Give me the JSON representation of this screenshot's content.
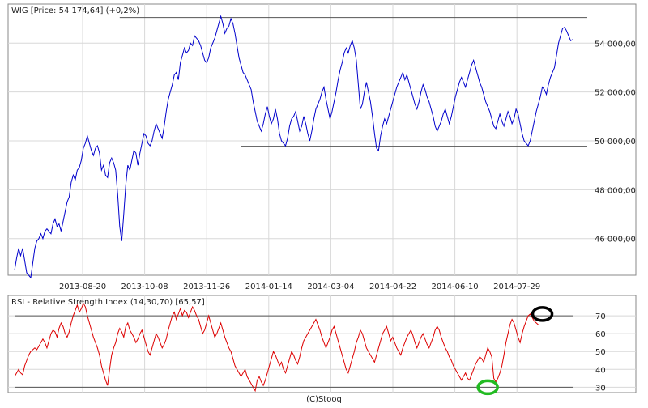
{
  "credit": "(C)Stooq",
  "chart_data": [
    {
      "type": "line",
      "panel": "price",
      "title": "WIG [Price: 54 174,64] (+0,2%)",
      "x_tick_labels": [
        "2013-08-20",
        "2013-10-08",
        "2013-11-26",
        "2014-01-14",
        "2014-03-04",
        "2014-04-22",
        "2014-06-10",
        "2014-07-29"
      ],
      "y_tick_labels": [
        "46 000,00",
        "48 000,00",
        "50 000,00",
        "52 000,00",
        "54 000,00"
      ],
      "y_ticks": [
        46000,
        48000,
        50000,
        52000,
        54000
      ],
      "ylim": [
        44500,
        55500
      ],
      "grid": true,
      "colors": {
        "series": "#0000cc",
        "grid": "#d8d8d8",
        "ref_line": "#555555",
        "frame": "#888888"
      },
      "reference_lines": [
        {
          "value": 55050,
          "from_index": 52,
          "to_index": 264
        },
        {
          "value": 49780,
          "from_index": 112,
          "to_index": 264
        }
      ],
      "series": [
        {
          "values": [
            44700,
            45200,
            45600,
            45300,
            45600,
            45100,
            44600,
            44500,
            44400,
            45000,
            45600,
            45900,
            46000,
            46200,
            46000,
            46300,
            46400,
            46300,
            46200,
            46600,
            46800,
            46500,
            46600,
            46300,
            46700,
            47100,
            47500,
            47700,
            48300,
            48600,
            48400,
            48800,
            48900,
            49200,
            49700,
            49900,
            50200,
            49900,
            49600,
            49400,
            49700,
            49800,
            49500,
            48800,
            49000,
            48600,
            48500,
            49100,
            49300,
            49100,
            48800,
            47800,
            46500,
            45900,
            47000,
            48200,
            49000,
            48800,
            49200,
            49600,
            49500,
            49000,
            49500,
            49900,
            50300,
            50200,
            49900,
            49800,
            50000,
            50400,
            50700,
            50500,
            50300,
            50100,
            50600,
            51200,
            51700,
            52000,
            52300,
            52700,
            52800,
            52500,
            53200,
            53500,
            53800,
            53600,
            53700,
            54000,
            53900,
            54300,
            54200,
            54100,
            53900,
            53600,
            53300,
            53200,
            53400,
            53800,
            54000,
            54200,
            54500,
            54800,
            55100,
            54800,
            54400,
            54600,
            54700,
            55000,
            54800,
            54400,
            53900,
            53400,
            53100,
            52800,
            52700,
            52500,
            52300,
            52100,
            51600,
            51200,
            50800,
            50600,
            50400,
            50700,
            51100,
            51400,
            51000,
            50700,
            50900,
            51300,
            50900,
            50300,
            50000,
            49900,
            49800,
            50100,
            50600,
            50900,
            51000,
            51200,
            50800,
            50400,
            50600,
            51000,
            50700,
            50300,
            50000,
            50400,
            50900,
            51300,
            51500,
            51700,
            52000,
            52200,
            51700,
            51300,
            50900,
            51200,
            51600,
            52000,
            52500,
            52900,
            53200,
            53600,
            53800,
            53600,
            53900,
            54100,
            53800,
            53300,
            52300,
            51300,
            51500,
            52000,
            52400,
            52000,
            51600,
            51000,
            50300,
            49700,
            49600,
            50200,
            50600,
            50900,
            50700,
            51000,
            51300,
            51600,
            51900,
            52200,
            52400,
            52600,
            52800,
            52500,
            52700,
            52400,
            52100,
            51800,
            51500,
            51300,
            51600,
            52000,
            52300,
            52100,
            51800,
            51600,
            51300,
            51000,
            50600,
            50400,
            50600,
            50800,
            51100,
            51300,
            51000,
            50700,
            51000,
            51400,
            51800,
            52100,
            52400,
            52600,
            52400,
            52200,
            52500,
            52800,
            53100,
            53300,
            53000,
            52700,
            52400,
            52200,
            51900,
            51600,
            51400,
            51200,
            50900,
            50600,
            50500,
            50800,
            51100,
            50800,
            50600,
            50900,
            51200,
            51000,
            50700,
            50900,
            51300,
            51100,
            50700,
            50300,
            50000,
            49900,
            49800,
            50000,
            50400,
            50800,
            51200,
            51500,
            51800,
            52200,
            52100,
            51900,
            52300,
            52600,
            52800,
            53000,
            53500,
            54000,
            54300,
            54600,
            54650,
            54500,
            54300,
            54100,
            54150
          ]
        }
      ]
    },
    {
      "type": "line",
      "panel": "rsi",
      "title": "RSI - Relative Strength Index (14,30,70) [65,57]",
      "y_tick_labels": [
        "30",
        "40",
        "50",
        "60",
        "70"
      ],
      "y_ticks": [
        30,
        40,
        50,
        60,
        70
      ],
      "ylim": [
        27,
        80
      ],
      "reference_levels": [
        30,
        70
      ],
      "colors": {
        "series": "#dd0000",
        "level": "#555555",
        "green_marker": "#22bb22",
        "black_marker": "#000000"
      },
      "annotations": [
        {
          "shape": "ellipse",
          "color": "green",
          "at_index": 234,
          "at_value": 30
        },
        {
          "shape": "ellipse",
          "color": "black",
          "at_index": 261,
          "at_value": 71
        }
      ],
      "series": [
        {
          "values": [
            36,
            38,
            40,
            38,
            37,
            42,
            45,
            48,
            50,
            51,
            52,
            51,
            53,
            55,
            57,
            55,
            52,
            56,
            60,
            62,
            61,
            58,
            63,
            66,
            64,
            60,
            58,
            61,
            66,
            70,
            73,
            76,
            72,
            74,
            77,
            75,
            70,
            66,
            62,
            58,
            55,
            52,
            48,
            42,
            38,
            34,
            31,
            40,
            48,
            52,
            55,
            60,
            63,
            61,
            58,
            64,
            66,
            62,
            60,
            58,
            55,
            57,
            60,
            62,
            58,
            54,
            50,
            48,
            52,
            56,
            60,
            58,
            55,
            52,
            54,
            57,
            62,
            66,
            70,
            72,
            68,
            71,
            74,
            70,
            73,
            72,
            69,
            72,
            75,
            73,
            70,
            68,
            64,
            60,
            62,
            66,
            70,
            66,
            62,
            58,
            60,
            63,
            66,
            62,
            58,
            55,
            52,
            50,
            46,
            42,
            40,
            38,
            36,
            38,
            40,
            36,
            34,
            32,
            30,
            28,
            34,
            36,
            33,
            31,
            34,
            38,
            42,
            46,
            50,
            48,
            45,
            42,
            44,
            40,
            38,
            42,
            46,
            50,
            48,
            45,
            43,
            47,
            52,
            56,
            58,
            60,
            62,
            64,
            66,
            68,
            65,
            62,
            58,
            55,
            52,
            55,
            58,
            62,
            64,
            60,
            56,
            52,
            48,
            44,
            40,
            38,
            42,
            46,
            50,
            55,
            58,
            62,
            60,
            56,
            52,
            50,
            48,
            46,
            44,
            48,
            52,
            56,
            60,
            62,
            64,
            60,
            56,
            58,
            55,
            52,
            50,
            48,
            52,
            55,
            58,
            60,
            62,
            59,
            55,
            52,
            55,
            58,
            60,
            57,
            54,
            52,
            55,
            58,
            62,
            64,
            62,
            58,
            55,
            52,
            50,
            47,
            45,
            42,
            40,
            38,
            36,
            34,
            36,
            38,
            35,
            34,
            37,
            40,
            43,
            45,
            47,
            46,
            44,
            48,
            52,
            50,
            47,
            35,
            33,
            35,
            38,
            42,
            48,
            55,
            60,
            65,
            68,
            66,
            62,
            58,
            55,
            60,
            64,
            67,
            70,
            71,
            69,
            67,
            66,
            65
          ]
        }
      ]
    }
  ]
}
